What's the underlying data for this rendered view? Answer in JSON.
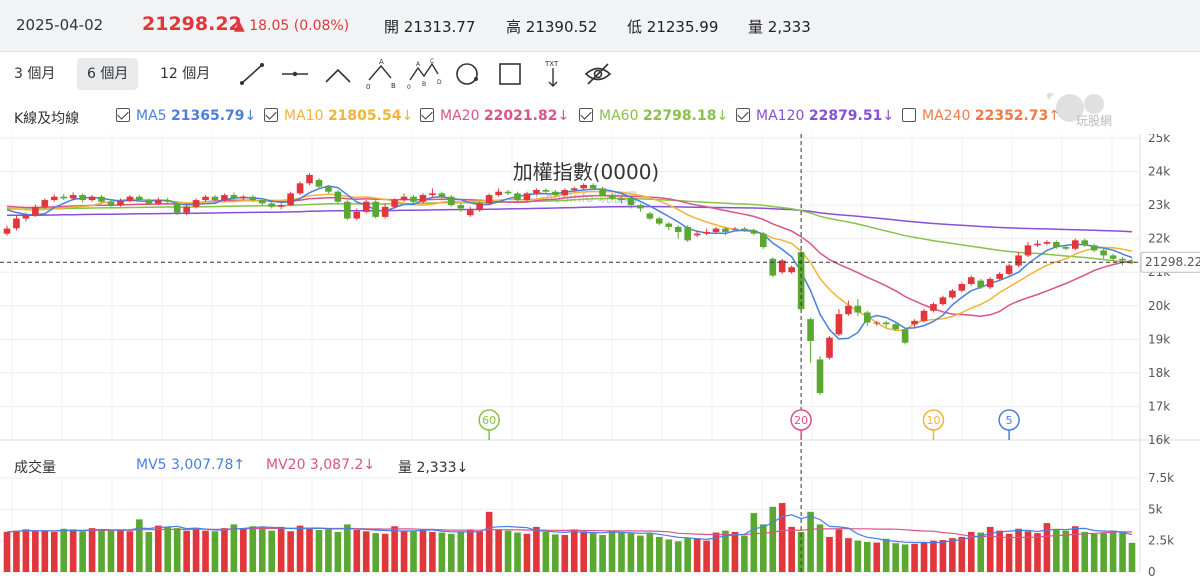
{
  "quote": {
    "date": "2025-04-02",
    "price": "21298.22",
    "change": "▲ 18.05 (0.08%)",
    "open_label": "開",
    "open": "21313.77",
    "high_label": "高",
    "high": "21390.52",
    "low_label": "低",
    "low": "21235.99",
    "vol_label": "量",
    "vol": "2,333"
  },
  "ranges": [
    "3 個月",
    "6 個月",
    "12 個月"
  ],
  "active_range": 1,
  "tools": [
    "trend-line-icon",
    "horizontal-line-icon",
    "angle-line-icon",
    "abc-pattern-icon",
    "abcd-pattern-icon",
    "circle-icon",
    "rectangle-icon",
    "text-icon",
    "hide-icon"
  ],
  "ma_legend": {
    "title": "K線及均線",
    "items": [
      {
        "label": "MA5",
        "value": "21365.79",
        "arrow": "↓",
        "color": "#4a7fe0",
        "checked": true
      },
      {
        "label": "MA10",
        "value": "21805.54",
        "arrow": "↓",
        "color": "#f2b33a",
        "checked": true
      },
      {
        "label": "MA20",
        "value": "22021.82",
        "arrow": "↓",
        "color": "#d9538a",
        "checked": true
      },
      {
        "label": "MA60",
        "value": "22798.18",
        "arrow": "↓",
        "color": "#88c24a",
        "checked": true
      },
      {
        "label": "MA120",
        "value": "22879.51",
        "arrow": "↓",
        "color": "#8a4fd8",
        "checked": true
      },
      {
        "label": "MA240",
        "value": "22352.73",
        "arrow": "↑",
        "color": "#ef7a45",
        "checked": false
      }
    ]
  },
  "watermark_text": "玩股網",
  "volume_legend": {
    "title": "成交量",
    "mv5": "MV5 3,007.78↑",
    "mv20": "MV20 3,087.2↓",
    "vol": "量 2,333↓"
  },
  "chart_data": {
    "type": "candlestick",
    "title": "加權指數(0000)",
    "subtitle": "Goodinfo 玩股網",
    "price_ticks": [
      "25k",
      "24k",
      "23k",
      "22k",
      "21k",
      "20k",
      "19k",
      "18k",
      "17k",
      "16k"
    ],
    "price_ylim": [
      16000,
      25000
    ],
    "last_price_label": "21298.22",
    "last_price": 21298.22,
    "volume_ticks": [
      "7.5k",
      "5k",
      "2.5k",
      "0"
    ],
    "volume_ylim": [
      0,
      7500
    ],
    "ma_markers": [
      {
        "label": "60",
        "color": "#88c24a"
      },
      {
        "label": "20",
        "color": "#d9538a"
      },
      {
        "label": "10",
        "color": "#f2b33a"
      },
      {
        "label": "5",
        "color": "#4a7fe0"
      }
    ],
    "up_color": "#e0363c",
    "down_color": "#5aa832",
    "candles": [
      {
        "o": 22150,
        "c": 22300,
        "h": 22380,
        "l": 22090
      },
      {
        "o": 22310,
        "c": 22600,
        "h": 22680,
        "l": 22250
      },
      {
        "o": 22600,
        "c": 22700,
        "h": 22780,
        "l": 22520
      },
      {
        "o": 22700,
        "c": 22950,
        "h": 23020,
        "l": 22650
      },
      {
        "o": 22950,
        "c": 23150,
        "h": 23200,
        "l": 22900
      },
      {
        "o": 23150,
        "c": 23250,
        "h": 23320,
        "l": 23100
      },
      {
        "o": 23250,
        "c": 23200,
        "h": 23330,
        "l": 23150
      },
      {
        "o": 23200,
        "c": 23300,
        "h": 23380,
        "l": 23150
      },
      {
        "o": 23300,
        "c": 23150,
        "h": 23350,
        "l": 23080
      },
      {
        "o": 23150,
        "c": 23250,
        "h": 23300,
        "l": 23100
      },
      {
        "o": 23250,
        "c": 23100,
        "h": 23300,
        "l": 23050
      },
      {
        "o": 23100,
        "c": 23000,
        "h": 23150,
        "l": 22950
      },
      {
        "o": 23000,
        "c": 23120,
        "h": 23200,
        "l": 22950
      },
      {
        "o": 23120,
        "c": 23250,
        "h": 23300,
        "l": 23080
      },
      {
        "o": 23250,
        "c": 23150,
        "h": 23300,
        "l": 23100
      },
      {
        "o": 23150,
        "c": 23050,
        "h": 23200,
        "l": 23000
      },
      {
        "o": 23050,
        "c": 23150,
        "h": 23230,
        "l": 23000
      },
      {
        "o": 23150,
        "c": 23100,
        "h": 23220,
        "l": 23050
      },
      {
        "o": 23050,
        "c": 22780,
        "h": 23100,
        "l": 22700
      },
      {
        "o": 22780,
        "c": 22950,
        "h": 23000,
        "l": 22700
      },
      {
        "o": 22950,
        "c": 23150,
        "h": 23200,
        "l": 22900
      },
      {
        "o": 23150,
        "c": 23250,
        "h": 23300,
        "l": 23100
      },
      {
        "o": 23250,
        "c": 23150,
        "h": 23300,
        "l": 23100
      },
      {
        "o": 23150,
        "c": 23300,
        "h": 23350,
        "l": 23100
      },
      {
        "o": 23300,
        "c": 23200,
        "h": 23380,
        "l": 23150
      },
      {
        "o": 23200,
        "c": 23250,
        "h": 23300,
        "l": 23150
      },
      {
        "o": 23250,
        "c": 23150,
        "h": 23300,
        "l": 23100
      },
      {
        "o": 23150,
        "c": 23050,
        "h": 23200,
        "l": 23000
      },
      {
        "o": 23050,
        "c": 22950,
        "h": 23100,
        "l": 22900
      },
      {
        "o": 22950,
        "c": 23000,
        "h": 23050,
        "l": 22880
      },
      {
        "o": 23000,
        "c": 23350,
        "h": 23400,
        "l": 22980
      },
      {
        "o": 23350,
        "c": 23650,
        "h": 23700,
        "l": 23300
      },
      {
        "o": 23650,
        "c": 23900,
        "h": 23950,
        "l": 23600
      },
      {
        "o": 23750,
        "c": 23550,
        "h": 23800,
        "l": 23500
      },
      {
        "o": 23550,
        "c": 23400,
        "h": 23600,
        "l": 23350
      },
      {
        "o": 23400,
        "c": 23100,
        "h": 23450,
        "l": 23050
      },
      {
        "o": 23100,
        "c": 22600,
        "h": 23150,
        "l": 22550
      },
      {
        "o": 22600,
        "c": 22800,
        "h": 22900,
        "l": 22550
      },
      {
        "o": 22800,
        "c": 23100,
        "h": 23150,
        "l": 22750
      },
      {
        "o": 23100,
        "c": 22650,
        "h": 23150,
        "l": 22600
      },
      {
        "o": 22650,
        "c": 22950,
        "h": 23050,
        "l": 22600
      },
      {
        "o": 22950,
        "c": 23150,
        "h": 23200,
        "l": 22900
      },
      {
        "o": 23150,
        "c": 23250,
        "h": 23350,
        "l": 23100
      },
      {
        "o": 23250,
        "c": 23100,
        "h": 23300,
        "l": 23050
      },
      {
        "o": 23100,
        "c": 23300,
        "h": 23350,
        "l": 23050
      },
      {
        "o": 23300,
        "c": 23350,
        "h": 23500,
        "l": 23250
      },
      {
        "o": 23350,
        "c": 23250,
        "h": 23400,
        "l": 23200
      },
      {
        "o": 23250,
        "c": 23000,
        "h": 23300,
        "l": 22950
      },
      {
        "o": 23000,
        "c": 22900,
        "h": 23050,
        "l": 22800
      },
      {
        "o": 22700,
        "c": 22850,
        "h": 22950,
        "l": 22650
      },
      {
        "o": 22850,
        "c": 23050,
        "h": 23100,
        "l": 22800
      },
      {
        "o": 23050,
        "c": 23300,
        "h": 23350,
        "l": 23000
      },
      {
        "o": 23300,
        "c": 23400,
        "h": 23500,
        "l": 23250
      },
      {
        "o": 23400,
        "c": 23350,
        "h": 23450,
        "l": 23300
      },
      {
        "o": 23350,
        "c": 23150,
        "h": 23400,
        "l": 23100
      },
      {
        "o": 23150,
        "c": 23350,
        "h": 23400,
        "l": 23100
      },
      {
        "o": 23350,
        "c": 23450,
        "h": 23500,
        "l": 23300
      },
      {
        "o": 23450,
        "c": 23400,
        "h": 23500,
        "l": 23350
      },
      {
        "o": 23400,
        "c": 23300,
        "h": 23450,
        "l": 23250
      },
      {
        "o": 23300,
        "c": 23450,
        "h": 23500,
        "l": 23250
      },
      {
        "o": 23450,
        "c": 23500,
        "h": 23550,
        "l": 23400
      },
      {
        "o": 23500,
        "c": 23600,
        "h": 23650,
        "l": 23450
      },
      {
        "o": 23600,
        "c": 23500,
        "h": 23650,
        "l": 23450
      },
      {
        "o": 23500,
        "c": 23300,
        "h": 23550,
        "l": 23250
      },
      {
        "o": 23300,
        "c": 23200,
        "h": 23350,
        "l": 23150
      },
      {
        "o": 23200,
        "c": 23150,
        "h": 23250,
        "l": 23050
      },
      {
        "o": 23200,
        "c": 23000,
        "h": 23250,
        "l": 22900
      },
      {
        "o": 23000,
        "c": 22900,
        "h": 23050,
        "l": 22800
      },
      {
        "o": 22750,
        "c": 22600,
        "h": 22800,
        "l": 22550
      },
      {
        "o": 22600,
        "c": 22450,
        "h": 22650,
        "l": 22400
      },
      {
        "o": 22450,
        "c": 22350,
        "h": 22500,
        "l": 22250
      },
      {
        "o": 22350,
        "c": 22200,
        "h": 22400,
        "l": 22000
      },
      {
        "o": 22350,
        "c": 21950,
        "h": 22400,
        "l": 21900
      },
      {
        "o": 22100,
        "c": 22150,
        "h": 22250,
        "l": 22050
      },
      {
        "o": 22150,
        "c": 22200,
        "h": 22300,
        "l": 22100
      },
      {
        "o": 22200,
        "c": 22300,
        "h": 22350,
        "l": 22150
      },
      {
        "o": 22300,
        "c": 22200,
        "h": 22350,
        "l": 22100
      },
      {
        "o": 22300,
        "c": 22300,
        "h": 22350,
        "l": 22250
      },
      {
        "o": 22300,
        "c": 22250,
        "h": 22350,
        "l": 22200
      },
      {
        "o": 22250,
        "c": 22150,
        "h": 22300,
        "l": 22100
      },
      {
        "o": 22150,
        "c": 21750,
        "h": 22200,
        "l": 21700
      },
      {
        "o": 21400,
        "c": 20900,
        "h": 21450,
        "l": 20850
      },
      {
        "o": 21000,
        "c": 21350,
        "h": 21400,
        "l": 20950
      },
      {
        "o": 21000,
        "c": 21150,
        "h": 21200,
        "l": 20950
      },
      {
        "o": 21600,
        "c": 19900,
        "h": 21650,
        "l": 19850
      },
      {
        "o": 19600,
        "c": 18950,
        "h": 19650,
        "l": 18300
      },
      {
        "o": 18400,
        "c": 17400,
        "h": 18500,
        "l": 17350
      },
      {
        "o": 18450,
        "c": 19050,
        "h": 19100,
        "l": 18400
      },
      {
        "o": 19150,
        "c": 19750,
        "h": 19900,
        "l": 19100
      },
      {
        "o": 19750,
        "c": 20000,
        "h": 20150,
        "l": 19700
      },
      {
        "o": 20000,
        "c": 19800,
        "h": 20200,
        "l": 19700
      },
      {
        "o": 19800,
        "c": 19500,
        "h": 19850,
        "l": 19400
      },
      {
        "o": 19500,
        "c": 19500,
        "h": 19550,
        "l": 19400
      },
      {
        "o": 19500,
        "c": 19450,
        "h": 19550,
        "l": 19350
      },
      {
        "o": 19450,
        "c": 19300,
        "h": 19500,
        "l": 19250
      },
      {
        "o": 19300,
        "c": 18900,
        "h": 19350,
        "l": 18850
      },
      {
        "o": 19450,
        "c": 19550,
        "h": 19600,
        "l": 19350
      },
      {
        "o": 19550,
        "c": 19850,
        "h": 19900,
        "l": 19500
      },
      {
        "o": 19850,
        "c": 20050,
        "h": 20100,
        "l": 19800
      },
      {
        "o": 20050,
        "c": 20250,
        "h": 20300,
        "l": 20000
      },
      {
        "o": 20250,
        "c": 20450,
        "h": 20500,
        "l": 20200
      },
      {
        "o": 20450,
        "c": 20650,
        "h": 20700,
        "l": 20400
      },
      {
        "o": 20650,
        "c": 20850,
        "h": 20900,
        "l": 20600
      },
      {
        "o": 20750,
        "c": 20550,
        "h": 20800,
        "l": 20500
      },
      {
        "o": 20550,
        "c": 20800,
        "h": 20850,
        "l": 20500
      },
      {
        "o": 20800,
        "c": 20950,
        "h": 21000,
        "l": 20750
      },
      {
        "o": 20950,
        "c": 21200,
        "h": 21250,
        "l": 20900
      },
      {
        "o": 21200,
        "c": 21500,
        "h": 21600,
        "l": 21150
      },
      {
        "o": 21500,
        "c": 21800,
        "h": 21900,
        "l": 21450
      },
      {
        "o": 21800,
        "c": 21850,
        "h": 21950,
        "l": 21750
      },
      {
        "o": 21850,
        "c": 21900,
        "h": 21950,
        "l": 21800
      },
      {
        "o": 21900,
        "c": 21750,
        "h": 21950,
        "l": 21700
      },
      {
        "o": 21750,
        "c": 21700,
        "h": 21800,
        "l": 21650
      },
      {
        "o": 21700,
        "c": 21950,
        "h": 22000,
        "l": 21650
      },
      {
        "o": 21950,
        "c": 21800,
        "h": 22000,
        "l": 21750
      },
      {
        "o": 21800,
        "c": 21650,
        "h": 21850,
        "l": 21600
      },
      {
        "o": 21650,
        "c": 21500,
        "h": 21700,
        "l": 21400
      },
      {
        "o": 21500,
        "c": 21400,
        "h": 21550,
        "l": 21350
      },
      {
        "o": 21400,
        "c": 21350,
        "h": 21450,
        "l": 21200
      },
      {
        "o": 21313,
        "c": 21298,
        "h": 21390,
        "l": 21236
      }
    ],
    "volumes": [
      3200,
      3300,
      3400,
      3250,
      3300,
      3200,
      3450,
      3400,
      3250,
      3500,
      3350,
      3300,
      3400,
      3250,
      4200,
      3200,
      3700,
      3600,
      3500,
      3300,
      3400,
      3300,
      3250,
      3500,
      3800,
      3500,
      3650,
      3550,
      3300,
      3600,
      3250,
      3700,
      3550,
      3350,
      3400,
      3200,
      3800,
      3350,
      3250,
      3100,
      3050,
      3650,
      3300,
      3250,
      3400,
      3200,
      3150,
      3050,
      3200,
      3400,
      3250,
      4800,
      3400,
      3300,
      3150,
      3050,
      3600,
      3200,
      3000,
      2950,
      3400,
      3250,
      3100,
      2950,
      3300,
      3200,
      3100,
      2900,
      3050,
      2800,
      2600,
      2450,
      2750,
      2700,
      2500,
      3150,
      3300,
      3200,
      2900,
      4700,
      3800,
      5200,
      5500,
      3600,
      3200,
      4800,
      3800,
      2800,
      3400,
      2700,
      2500,
      2400,
      2350,
      2650,
      2300,
      2200,
      2250,
      2400,
      2500,
      2550,
      2700,
      2800,
      3200,
      3150,
      3600,
      3300,
      3050,
      3450,
      3250,
      3100,
      3900,
      3350,
      3300,
      3650,
      3200,
      3050,
      3100,
      3300,
      3150,
      2333
    ],
    "marker_at": [
      51,
      84,
      98,
      106,
      111
    ]
  }
}
